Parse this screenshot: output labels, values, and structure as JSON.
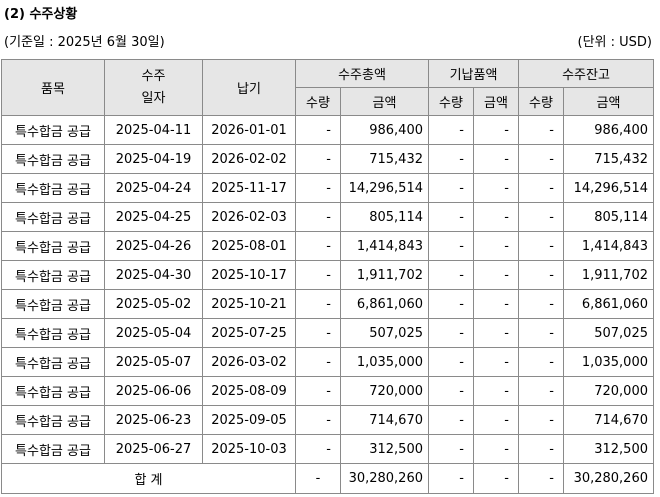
{
  "title": "(2) 수주상황",
  "basis": "(기준일 : 2025년 6월 30일)",
  "unit": "(단위 : USD)",
  "headers": {
    "item": "품목",
    "order_date": "수주\n일자",
    "delivery": "납기",
    "order_total": "수주총액",
    "delivered": "기납품액",
    "backlog": "수주잔고",
    "qty": "수량",
    "amount": "금액"
  },
  "rows": [
    {
      "item": "특수합금 공급",
      "order_date": "2025-04-11",
      "delivery": "2026-01-01",
      "qty1": "-",
      "amt1": "986,400",
      "qty2": "-",
      "amt2": "-",
      "qty3": "-",
      "amt3": "986,400"
    },
    {
      "item": "특수합금 공급",
      "order_date": "2025-04-19",
      "delivery": "2026-02-02",
      "qty1": "-",
      "amt1": "715,432",
      "qty2": "-",
      "amt2": "-",
      "qty3": "-",
      "amt3": "715,432"
    },
    {
      "item": "특수합금 공급",
      "order_date": "2025-04-24",
      "delivery": "2025-11-17",
      "qty1": "-",
      "amt1": "14,296,514",
      "qty2": "-",
      "amt2": "-",
      "qty3": "-",
      "amt3": "14,296,514"
    },
    {
      "item": "특수합금 공급",
      "order_date": "2025-04-25",
      "delivery": "2026-02-03",
      "qty1": "-",
      "amt1": "805,114",
      "qty2": "-",
      "amt2": "-",
      "qty3": "-",
      "amt3": "805,114"
    },
    {
      "item": "특수합금 공급",
      "order_date": "2025-04-26",
      "delivery": "2025-08-01",
      "qty1": "-",
      "amt1": "1,414,843",
      "qty2": "-",
      "amt2": "-",
      "qty3": "-",
      "amt3": "1,414,843"
    },
    {
      "item": "특수합금 공급",
      "order_date": "2025-04-30",
      "delivery": "2025-10-17",
      "qty1": "-",
      "amt1": "1,911,702",
      "qty2": "-",
      "amt2": "-",
      "qty3": "-",
      "amt3": "1,911,702"
    },
    {
      "item": "특수합금 공급",
      "order_date": "2025-05-02",
      "delivery": "2025-10-21",
      "qty1": "-",
      "amt1": "6,861,060",
      "qty2": "-",
      "amt2": "-",
      "qty3": "-",
      "amt3": "6,861,060"
    },
    {
      "item": "특수합금 공급",
      "order_date": "2025-05-04",
      "delivery": "2025-07-25",
      "qty1": "-",
      "amt1": "507,025",
      "qty2": "-",
      "amt2": "-",
      "qty3": "-",
      "amt3": "507,025"
    },
    {
      "item": "특수합금 공급",
      "order_date": "2025-05-07",
      "delivery": "2026-03-02",
      "qty1": "-",
      "amt1": "1,035,000",
      "qty2": "-",
      "amt2": "-",
      "qty3": "-",
      "amt3": "1,035,000"
    },
    {
      "item": "특수합금 공급",
      "order_date": "2025-06-06",
      "delivery": "2025-08-09",
      "qty1": "-",
      "amt1": "720,000",
      "qty2": "-",
      "amt2": "-",
      "qty3": "-",
      "amt3": "720,000"
    },
    {
      "item": "특수합금 공급",
      "order_date": "2025-06-23",
      "delivery": "2025-09-05",
      "qty1": "-",
      "amt1": "714,670",
      "qty2": "-",
      "amt2": "-",
      "qty3": "-",
      "amt3": "714,670"
    },
    {
      "item": "특수합금 공급",
      "order_date": "2025-06-27",
      "delivery": "2025-10-03",
      "qty1": "-",
      "amt1": "312,500",
      "qty2": "-",
      "amt2": "-",
      "qty3": "-",
      "amt3": "312,500"
    }
  ],
  "total": {
    "label": "합 계",
    "qty1": "-",
    "amt1": "30,280,260",
    "qty2": "-",
    "amt2": "-",
    "qty3": "-",
    "amt3": "30,280,260"
  }
}
